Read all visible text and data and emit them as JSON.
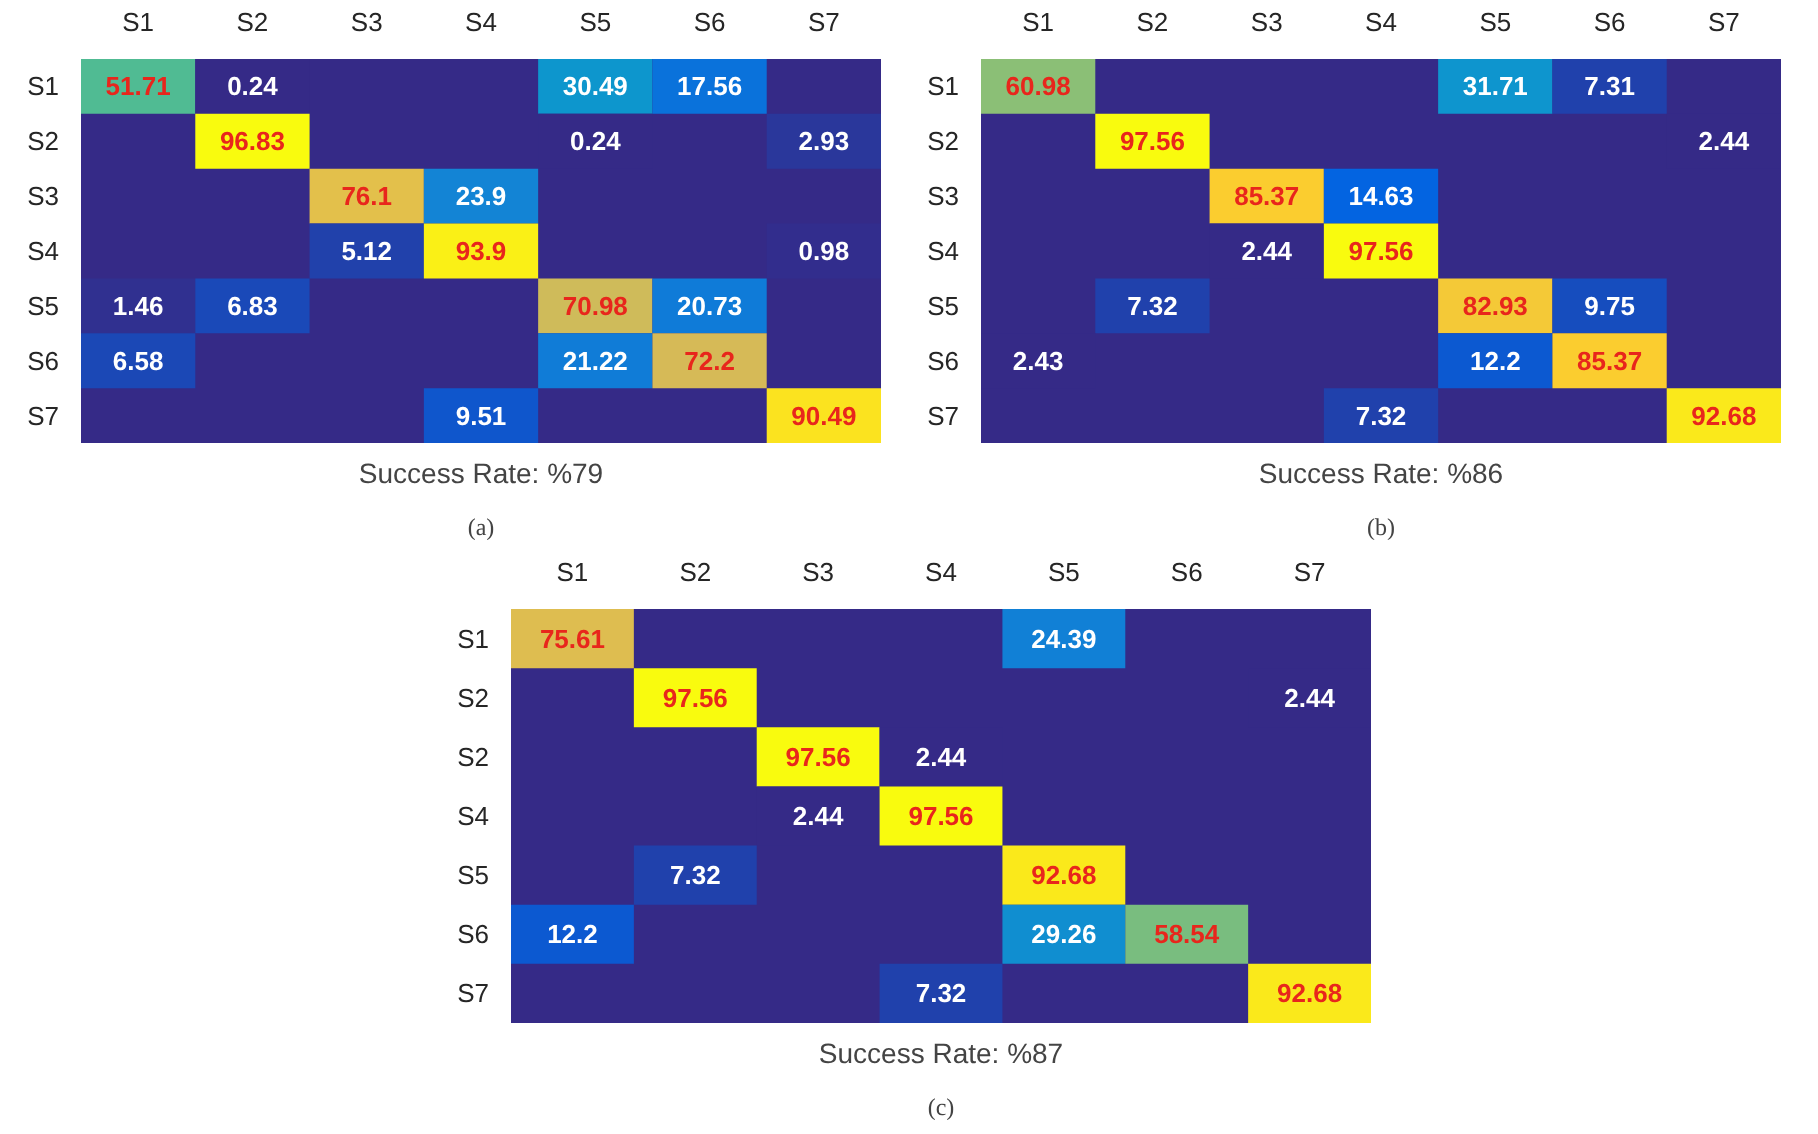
{
  "chart_data": [
    {
      "type": "heatmap",
      "xlabel": "Success Rate: %79",
      "annotations": [
        "(a)"
      ],
      "data_labels": true,
      "categories": [
        "S1",
        "S2",
        "S3",
        "S4",
        "S5",
        "S6",
        "S7"
      ],
      "y_categories": [
        "S1",
        "S2",
        "S3",
        "S4",
        "S5",
        "S6",
        "S7"
      ],
      "cells": [
        [
          51.71,
          0.24,
          null,
          null,
          30.49,
          17.56,
          null
        ],
        [
          null,
          96.83,
          null,
          null,
          0.24,
          null,
          2.93
        ],
        [
          null,
          null,
          76.1,
          23.9,
          null,
          null,
          null
        ],
        [
          null,
          null,
          5.12,
          93.9,
          null,
          null,
          0.98
        ],
        [
          1.46,
          6.83,
          null,
          null,
          70.98,
          20.73,
          null
        ],
        [
          6.58,
          null,
          null,
          null,
          21.22,
          72.2,
          null
        ],
        [
          null,
          null,
          null,
          9.51,
          null,
          null,
          90.49
        ]
      ]
    },
    {
      "type": "heatmap",
      "xlabel": "Success Rate: %86",
      "annotations": [
        "(b)"
      ],
      "data_labels": true,
      "categories": [
        "S1",
        "S2",
        "S3",
        "S4",
        "S5",
        "S6",
        "S7"
      ],
      "y_categories": [
        "S1",
        "S2",
        "S3",
        "S4",
        "S5",
        "S6",
        "S7"
      ],
      "cells": [
        [
          60.98,
          null,
          null,
          null,
          31.71,
          7.31,
          null
        ],
        [
          null,
          97.56,
          null,
          null,
          null,
          null,
          2.44
        ],
        [
          null,
          null,
          85.37,
          14.63,
          null,
          null,
          null
        ],
        [
          null,
          null,
          2.44,
          97.56,
          null,
          null,
          null
        ],
        [
          null,
          7.32,
          null,
          null,
          82.93,
          9.75,
          null
        ],
        [
          2.43,
          null,
          null,
          null,
          12.2,
          85.37,
          null
        ],
        [
          null,
          null,
          null,
          7.32,
          null,
          null,
          92.68
        ]
      ]
    },
    {
      "type": "heatmap",
      "xlabel": "Success Rate: %87",
      "annotations": [
        "(c)"
      ],
      "data_labels": true,
      "categories": [
        "S1",
        "S2",
        "S3",
        "S4",
        "S5",
        "S6",
        "S7"
      ],
      "y_categories": [
        "S1",
        "S2",
        "S2",
        "S4",
        "S5",
        "S6",
        "S7"
      ],
      "cells": [
        [
          75.61,
          null,
          null,
          null,
          24.39,
          null,
          null
        ],
        [
          null,
          97.56,
          null,
          null,
          null,
          null,
          2.44
        ],
        [
          null,
          null,
          97.56,
          2.44,
          null,
          null,
          null
        ],
        [
          null,
          null,
          2.44,
          97.56,
          null,
          null,
          null
        ],
        [
          null,
          7.32,
          null,
          null,
          92.68,
          null,
          null
        ],
        [
          12.2,
          null,
          null,
          null,
          29.26,
          58.54,
          null
        ],
        [
          null,
          null,
          null,
          7.32,
          null,
          null,
          92.68
        ]
      ]
    }
  ]
}
